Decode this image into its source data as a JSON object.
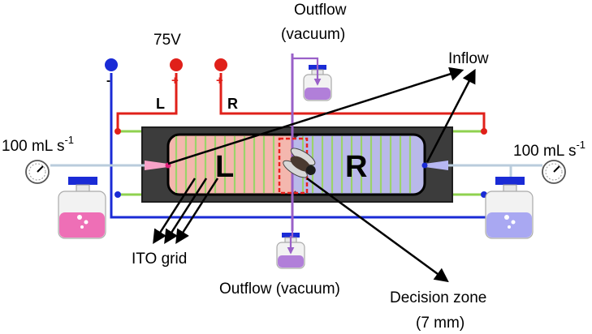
{
  "labels": {
    "outflow_top": [
      "Outflow",
      "(vacuum)"
    ],
    "voltage": "75V",
    "inflow": "Inflow",
    "flow_left": "100 mL s",
    "flow_right": "100 mL s",
    "flow_exp": "-1",
    "ito_grid": "ITO grid",
    "outflow_bottom": "Outflow (vacuum)",
    "decision_zone": [
      "Decision zone",
      "(7 mm)"
    ]
  },
  "electrodes": {
    "neg_sign": "-",
    "pos_sign_l": "+",
    "pos_sign_r": "+",
    "wire_l": "L",
    "wire_r": "R"
  },
  "chamber": {
    "side_l": "L",
    "side_r": "R"
  },
  "colors": {
    "negative": "#1a2bd6",
    "positive": "#e0201a",
    "grid_green": "#8fd14f",
    "chamber_dark": "#3c3c3c",
    "left_half": "#f4b7ae",
    "right_half": "#b9b9ea",
    "vacuum": "#9a60c8",
    "odor_left": "#ee6fb6",
    "odor_right": "#a9a8f2",
    "decision": "#e8221c"
  },
  "icons": [
    "gauge-icon",
    "bottle-icon",
    "fly-icon",
    "nozzle-icon",
    "electrode-icon"
  ]
}
